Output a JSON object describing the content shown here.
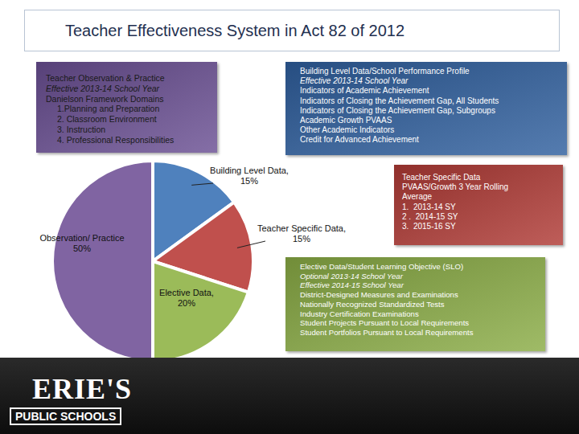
{
  "chart_data": {
    "type": "pie",
    "title": "Teacher Effectiveness System in Act 82 of 2012",
    "categories": [
      "Building Level Data,",
      "Teacher Specific Data,",
      "Elective Data,",
      "Observation/ Practice"
    ],
    "values": [
      15,
      15,
      20,
      50
    ],
    "value_labels": [
      "15%",
      "15%",
      "20%",
      "50%"
    ],
    "colors": [
      "#4f81bd",
      "#c0504d",
      "#9bbb59",
      "#8064a2"
    ],
    "data_labels": true
  },
  "boxes": [
    {
      "color": "#6a4f93",
      "text_color": "#1a1a1a",
      "lines": [
        {
          "text": "Teacher Observation & Practice"
        },
        {
          "text": "Effective 2013-14 School Year",
          "italic": true
        },
        {
          "text": "Danielson Framework Domains"
        },
        {
          "text": "1.Planning and Preparation",
          "indent": true
        },
        {
          "text": "2. Classroom Environment",
          "indent": true
        },
        {
          "text": "3. Instruction",
          "indent": true
        },
        {
          "text": "4. Professional Responsibilities",
          "indent": true
        }
      ]
    },
    {
      "color": "#2f5f9e",
      "text_color": "#ffffff",
      "lines": [
        {
          "text": "Building Level Data/School Performance Profile"
        },
        {
          "text": "Effective 2013-14 School Year",
          "italic": true
        },
        {
          "text": "Indicators of Academic Achievement"
        },
        {
          "text": "Indicators of Closing the Achievement Gap, All Students"
        },
        {
          "text": "Indicators of Closing the Achievement Gap, Subgroups"
        },
        {
          "text": "Academic Growth PVAAS"
        },
        {
          "text": "Other Academic Indicators"
        },
        {
          "text": "Credit for Advanced Achievement"
        }
      ]
    },
    {
      "color": "#b03a35",
      "text_color": "#ffffff",
      "lines": [
        {
          "text": "Teacher Specific Data"
        },
        {
          "text": "PVAAS/Growth 3 Year Rolling"
        },
        {
          "text": "Average"
        },
        {
          "text": "1.  2013-14 SY"
        },
        {
          "text": "2 .  2014-15 SY"
        },
        {
          "text": "3.  2015-16 SY"
        }
      ]
    },
    {
      "color": "#8aac45",
      "text_color": "#ffffff",
      "lines": [
        {
          "text": "Elective Data/Student Learning Objective (SLO)"
        },
        {
          "text": "Optional 2013-14 School Year",
          "italic": true
        },
        {
          "text": "Effective 2014-15 School Year",
          "italic": true
        },
        {
          "text": "District-Designed Measures and Examinations"
        },
        {
          "text": "Nationally Recognized Standardized Tests"
        },
        {
          "text": "Industry Certification Examinations"
        },
        {
          "text": "Student Projects Pursuant to Local Requirements"
        },
        {
          "text": "Student Portfolios Pursuant to Local Requirements"
        }
      ]
    }
  ],
  "logo": {
    "name": "ERIE'S",
    "subtitle": "PUBLIC SCHOOLS"
  }
}
